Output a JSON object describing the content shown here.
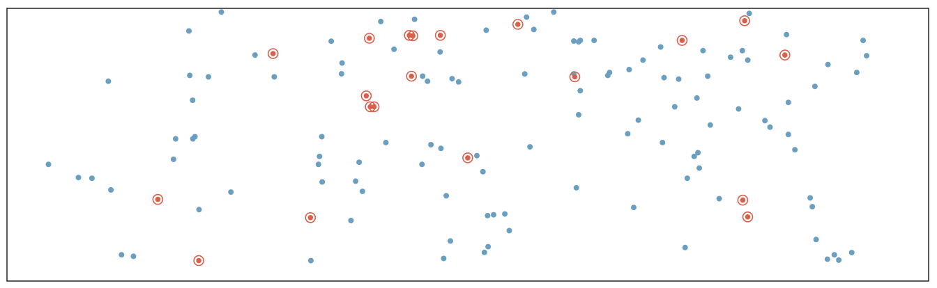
{
  "chart_data": {
    "type": "scatter",
    "title": "",
    "xlabel": "",
    "ylabel": "",
    "xlim": [
      0,
      1
    ],
    "ylim": [
      0,
      1
    ],
    "grid": false,
    "axes_ticks": false,
    "colors": {
      "population": "#6a9fc0",
      "sample": "#d9604a",
      "frame": "#222222"
    },
    "series": [
      {
        "role": "population",
        "points": [
          [
            0.045,
            0.4278
          ],
          [
            0.0775,
            0.3797
          ],
          [
            0.0922,
            0.377
          ],
          [
            0.11,
            0.7326
          ],
          [
            0.1128,
            0.3342
          ],
          [
            0.1243,
            0.0963
          ],
          [
            0.1372,
            0.0909
          ],
          [
            0.183,
            0.5214
          ],
          [
            0.1807,
            0.4465
          ],
          [
            0.1974,
            0.9171
          ],
          [
            0.1983,
            0.754
          ],
          [
            0.2014,
            0.6631
          ],
          [
            0.2017,
            0.5214
          ],
          [
            0.2039,
            0.5294
          ],
          [
            0.2084,
            0.262
          ],
          [
            0.2186,
            0.7487
          ],
          [
            0.243,
            0.3262
          ],
          [
            0.2326,
            0.9866
          ],
          [
            0.2691,
            0.8289
          ],
          [
            0.29,
            0.7487
          ],
          [
            0.3416,
            0.5294
          ],
          [
            0.3391,
            0.4572
          ],
          [
            0.3636,
            0.7995
          ],
          [
            0.338,
            0.4278
          ],
          [
            0.342,
            0.3636
          ],
          [
            0.3518,
            0.8797
          ],
          [
            0.3297,
            0.0749
          ],
          [
            0.3732,
            0.2219
          ],
          [
            0.3783,
            0.3663
          ],
          [
            0.3821,
            0.4358
          ],
          [
            0.3856,
            0.3289
          ],
          [
            0.4111,
            0.508
          ],
          [
            0.4056,
            0.9519
          ],
          [
            0.4422,
            0.9599
          ],
          [
            0.451,
            0.7513
          ],
          [
            0.4563,
            0.7326
          ],
          [
            0.4503,
            0.4278
          ],
          [
            0.4709,
            0.4866
          ],
          [
            0.4766,
            0.3128
          ],
          [
            0.4811,
            0.147
          ],
          [
            0.4738,
            0.0829
          ],
          [
            0.5098,
            0.4599
          ],
          [
            0.5164,
            0.4011
          ],
          [
            0.5402,
            0.246
          ],
          [
            0.5638,
            0.9679
          ],
          [
            0.5618,
            0.7594
          ],
          [
            0.5675,
            0.492
          ],
          [
            0.5716,
            0.9225
          ],
          [
            0.5933,
            0.9866
          ],
          [
            0.622,
            0.8824
          ],
          [
            0.6203,
            0.877
          ],
          [
            0.622,
            0.6979
          ],
          [
            0.6203,
            0.6096
          ],
          [
            0.6178,
            0.3422
          ],
          [
            0.6371,
            0.8824
          ],
          [
            0.6519,
            0.754
          ],
          [
            0.6538,
            0.7647
          ],
          [
            0.6735,
            0.5401
          ],
          [
            0.675,
            0.7754
          ],
          [
            0.6901,
            0.8102
          ],
          [
            0.7092,
            0.8583
          ],
          [
            0.7113,
            0.508
          ],
          [
            0.7129,
            0.746
          ],
          [
            0.7245,
            0.639
          ],
          [
            0.7288,
            0.7406
          ],
          [
            0.7486,
            0.6711
          ],
          [
            0.7497,
            0.4706
          ],
          [
            0.7511,
            0.4144
          ],
          [
            0.7552,
            0.8449
          ],
          [
            0.7603,
            0.7513
          ],
          [
            0.7631,
            0.5722
          ],
          [
            0.7728,
            0.3021
          ],
          [
            0.7979,
            0.8449
          ],
          [
            0.7938,
            0.631
          ],
          [
            0.8054,
            0.9813
          ],
          [
            0.8279,
            0.5642
          ],
          [
            0.8458,
            0.9037
          ],
          [
            0.8478,
            0.6551
          ],
          [
            0.8549,
            0.4813
          ],
          [
            0.8766,
            0.7139
          ],
          [
            0.8738,
            0.2727
          ],
          [
            0.8908,
            0.7941
          ],
          [
            0.8977,
            0.0962
          ],
          [
            0.8779,
            0.1524
          ],
          [
            0.9289,
            0.8824
          ],
          [
            0.922,
            0.7647
          ],
          [
            0.9327,
            0.8262
          ],
          [
            0.9166,
            0.1043
          ],
          [
            0.9025,
            0.0769
          ],
          [
            0.8902,
            0.0802
          ],
          [
            0.8715,
            0.3048
          ],
          [
            0.8478,
            0.5374
          ],
          [
            0.8224,
            0.5882
          ],
          [
            0.8038,
            0.8102
          ],
          [
            0.7851,
            0.8209
          ],
          [
            0.7456,
            0.4572
          ],
          [
            0.7381,
            0.377
          ],
          [
            0.7358,
            0.123
          ],
          [
            0.68,
            0.27
          ],
          [
            0.615,
            0.88
          ],
          [
            0.545,
            0.185
          ],
          [
            0.528,
            0.243
          ],
          [
            0.5215,
            0.24
          ],
          [
            0.518,
            0.105
          ],
          [
            0.522,
            0.126
          ],
          [
            0.42,
            0.85
          ],
          [
            0.363,
            0.76
          ],
          [
            0.46,
            0.5
          ],
          [
            0.483,
            0.742
          ],
          [
            0.47,
            0.84
          ],
          [
            0.49,
            0.73
          ],
          [
            0.52,
            0.92
          ],
          [
            0.615,
            0.76
          ],
          [
            0.685,
            0.59
          ]
        ]
      },
      {
        "role": "sample",
        "points": [
          [
            0.1637,
            0.2994
          ],
          [
            0.2081,
            0.0749
          ],
          [
            0.2887,
            0.8342
          ],
          [
            0.3293,
            0.2326
          ],
          [
            0.3932,
            0.8904
          ],
          [
            0.3899,
            0.6791
          ],
          [
            0.3983,
            0.639
          ],
          [
            0.4366,
            0.9011
          ],
          [
            0.4389,
            0.7513
          ],
          [
            0.4702,
            0.9011
          ],
          [
            0.4999,
            0.4519
          ],
          [
            0.5543,
            0.9412
          ],
          [
            0.6161,
            0.7487
          ],
          [
            0.7325,
            0.8824
          ],
          [
            0.8004,
            0.9545
          ],
          [
            0.844,
            0.8289
          ],
          [
            0.7983,
            0.2968
          ],
          [
            0.8037,
            0.2353
          ],
          [
            0.3942,
            0.639
          ],
          [
            0.4404,
            0.8993
          ]
        ]
      }
    ]
  }
}
